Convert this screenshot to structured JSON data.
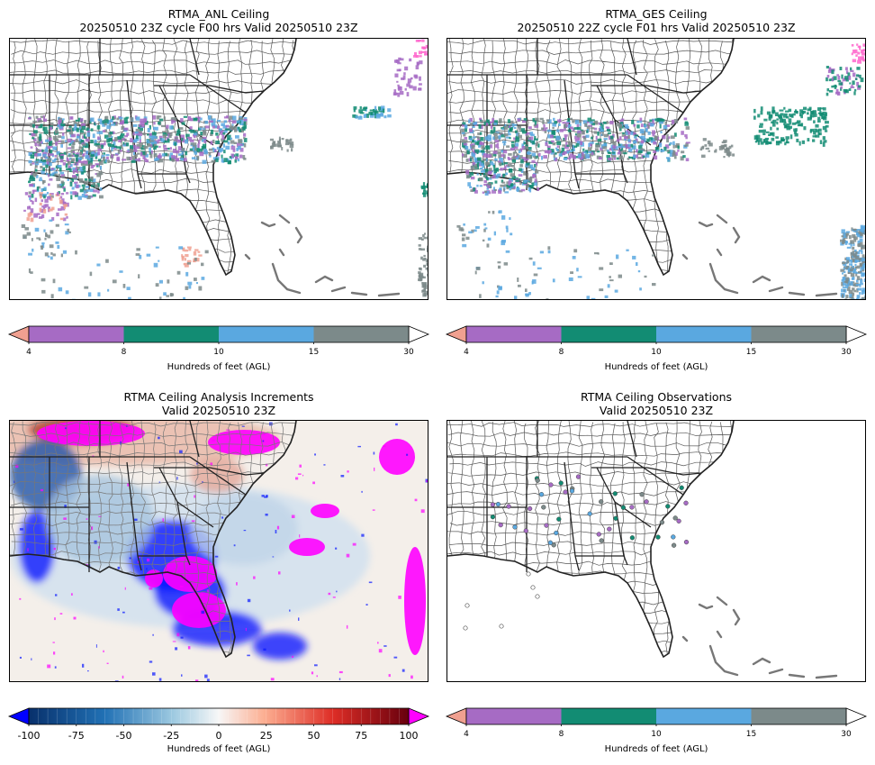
{
  "panels": [
    {
      "id": "anl",
      "title_line1": "RTMA_ANL Ceiling",
      "title_line2": "20250510 23Z cycle F00 hrs Valid 20250510 23Z"
    },
    {
      "id": "ges",
      "title_line1": "RTMA_GES Ceiling",
      "title_line2": "20250510 22Z cycle F01 hrs Valid 20250510 23Z"
    },
    {
      "id": "increments",
      "title_line1": "RTMA Ceiling Analysis Increments",
      "title_line2": "Valid 20250510 23Z"
    },
    {
      "id": "obs",
      "title_line1": "RTMA Ceiling Observations",
      "title_line2": "Valid 20250510 23Z"
    }
  ],
  "ceiling_colorbar": {
    "ticks": [
      "4",
      "8",
      "10",
      "15",
      "30"
    ],
    "label": "Hundreds of feet (AGL)",
    "under_color": "#f0a090",
    "over_color": "#ffffff",
    "colors": [
      "#a66bc4",
      "#128c73",
      "#5aa8e0",
      "#7c8a8a"
    ]
  },
  "increment_colorbar": {
    "ticks": [
      "-100",
      "-75",
      "-50",
      "-25",
      "0",
      "25",
      "50",
      "75",
      "100"
    ],
    "label": "Hundreds of feet (AGL)",
    "under_color": "#0000ff",
    "over_color": "#ff00ff"
  }
}
